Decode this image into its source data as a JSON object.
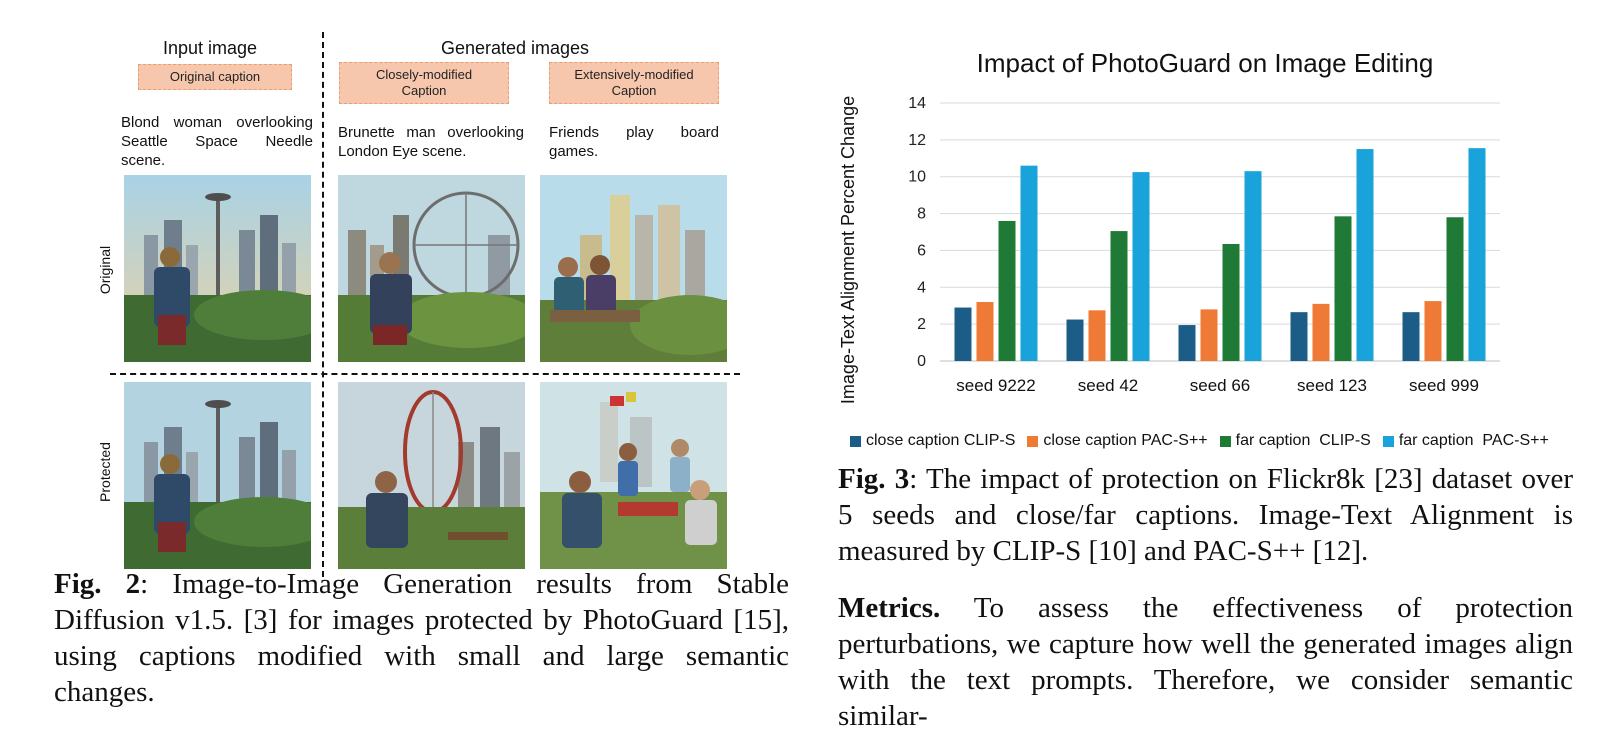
{
  "fig2": {
    "col_headers": {
      "input": "Input image",
      "generated": "Generated images"
    },
    "caption_tags": [
      "Original caption",
      "Closely-modified Caption",
      "Extensively-modified Caption"
    ],
    "prompts": [
      "Blond woman overlooking Seattle Space Needle scene.",
      "Brunette man overlooking London Eye scene.",
      "Friends play board games."
    ],
    "row_labels": [
      "Original",
      "Protected"
    ],
    "caption_label": "Fig. 2",
    "caption_text": ": Image-to-Image Generation results from Stable Diffusion v1.5. [3] for images protected by PhotoGuard [15], using captions modified with small and large semantic changes."
  },
  "fig3": {
    "caption_label": "Fig. 3",
    "caption_text": ": The impact of protection on Flickr8k [23] dataset over 5 seeds and close/far captions. Image-Text Alignment is measured by CLIP-S [10] and PAC-S++ [12]."
  },
  "metrics": {
    "label": "Metrics.",
    "text": " To assess the effectiveness of protection perturbations, we capture how well the generated images align with the text prompts. Therefore, we consider semantic similar-"
  },
  "chart_data": {
    "type": "bar",
    "title": "Impact of PhotoGuard on Image Editing",
    "xlabel": "",
    "ylabel": "Image-Text Alignment Percent Change",
    "ylim": [
      0,
      14
    ],
    "yticks": [
      0,
      2,
      4,
      6,
      8,
      10,
      12,
      14
    ],
    "grid": true,
    "legend_position": "bottom",
    "categories": [
      "seed 9222",
      "seed 42",
      "seed 66",
      "seed 123",
      "seed 999"
    ],
    "series": [
      {
        "name": "close caption CLIP-S",
        "color": "#1c5d87",
        "values": [
          2.9,
          2.25,
          1.95,
          2.65,
          2.65
        ]
      },
      {
        "name": "close caption PAC-S++",
        "color": "#ee7a35",
        "values": [
          3.2,
          2.75,
          2.8,
          3.1,
          3.25
        ]
      },
      {
        "name": "far caption  CLIP-S",
        "color": "#1f7a36",
        "values": [
          7.6,
          7.05,
          6.35,
          7.85,
          7.8
        ]
      },
      {
        "name": "far caption  PAC-S++",
        "color": "#1aa2db",
        "values": [
          10.6,
          10.25,
          10.3,
          11.5,
          11.55
        ]
      }
    ]
  }
}
